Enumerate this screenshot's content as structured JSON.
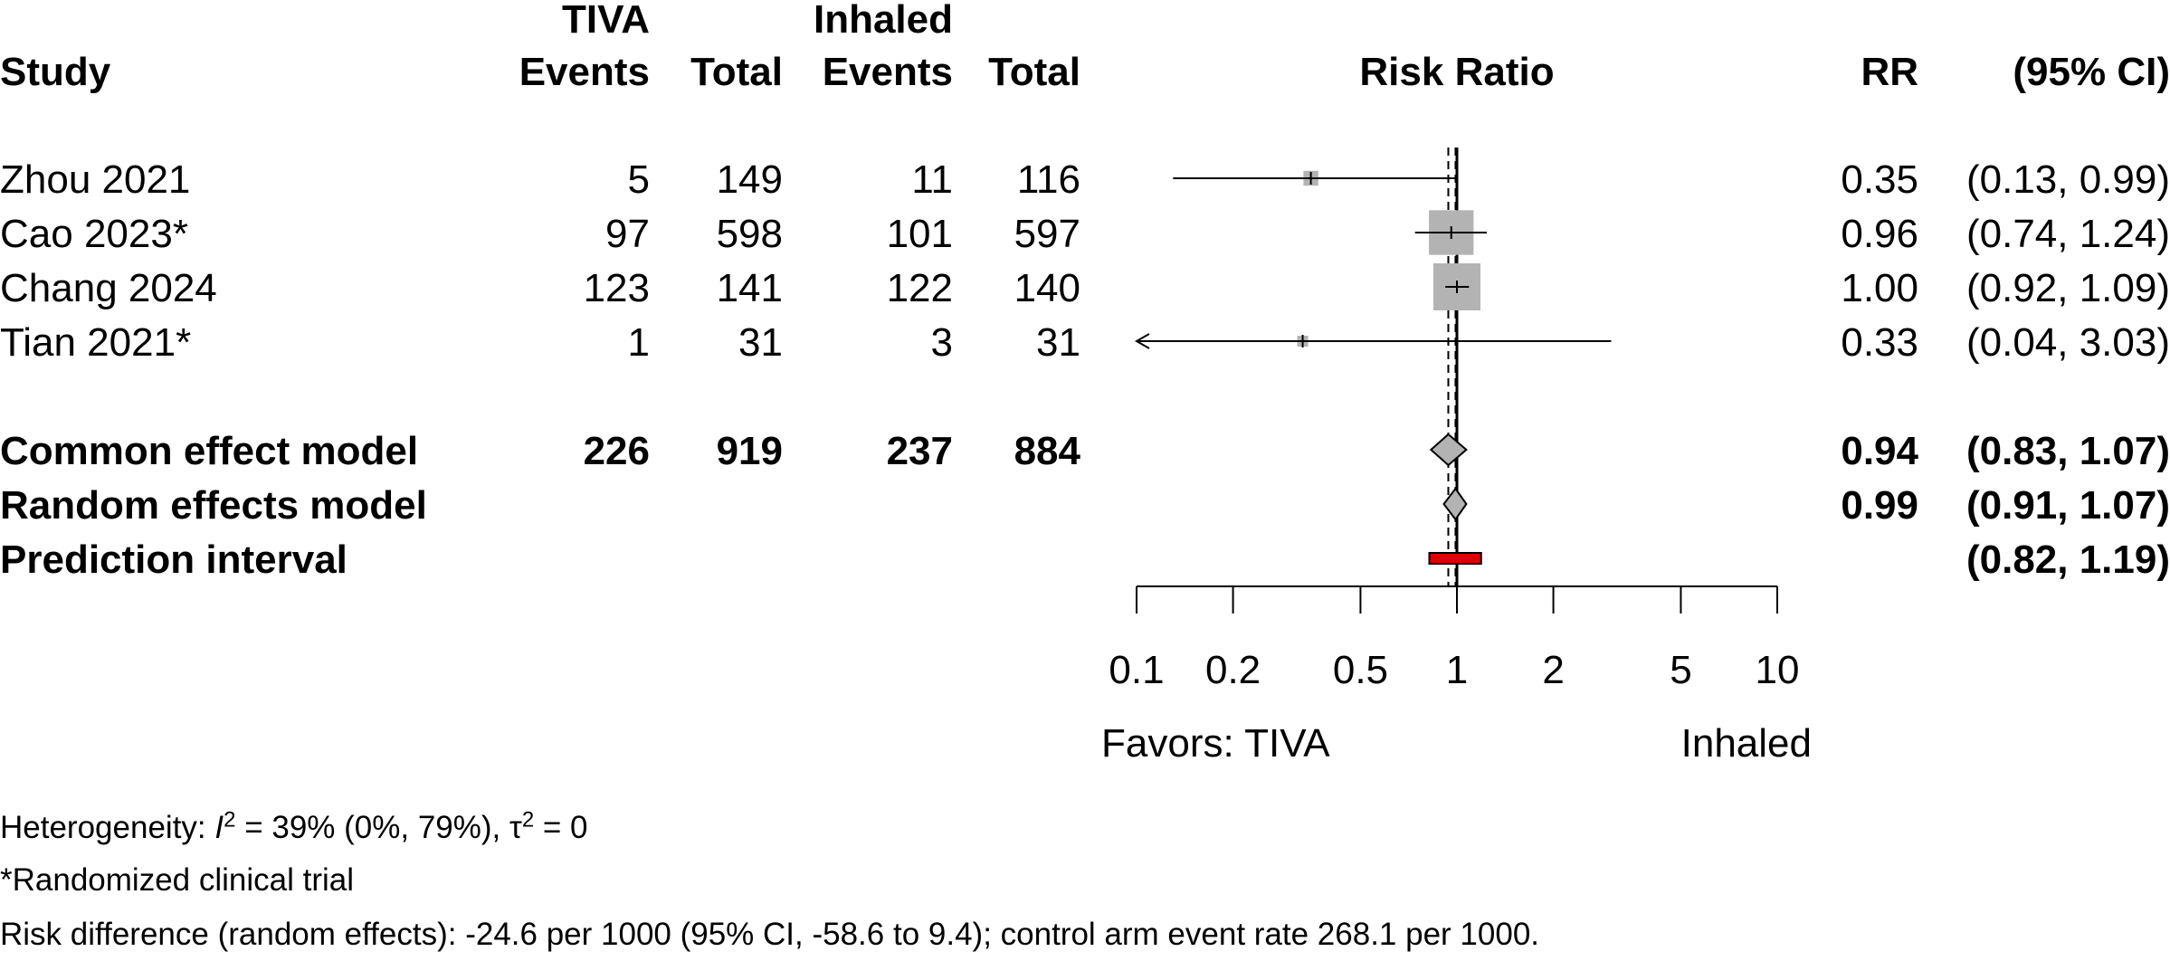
{
  "chart_data": {
    "type": "forest",
    "title": "",
    "measure": "Risk Ratio",
    "headers": {
      "study": "Study",
      "group1": "TIVA",
      "group2": "Inhaled",
      "events": "Events",
      "total": "Total",
      "effect_col": "RR",
      "ci_col": "(95% CI)"
    },
    "studies": [
      {
        "study": "Zhou 2021",
        "e1": "5",
        "n1": "149",
        "e2": "11",
        "n2": "116",
        "rr": 0.35,
        "lo": 0.13,
        "hi": 0.99,
        "rr_text": "0.35",
        "ci_text": "(0.13, 0.99)",
        "weight": 0.1
      },
      {
        "study": "Cao 2023*",
        "e1": "97",
        "n1": "598",
        "e2": "101",
        "n2": "597",
        "rr": 0.96,
        "lo": 0.74,
        "hi": 1.24,
        "rr_text": "0.96",
        "ci_text": "(0.74, 1.24)",
        "weight": 0.9
      },
      {
        "study": "Chang 2024",
        "e1": "123",
        "n1": "141",
        "e2": "122",
        "n2": "140",
        "rr": 1.0,
        "lo": 0.92,
        "hi": 1.09,
        "rr_text": "1.00",
        "ci_text": "(0.92, 1.09)",
        "weight": 1.0
      },
      {
        "study": "Tian 2021*",
        "e1": "1",
        "n1": "31",
        "e2": "3",
        "n2": "31",
        "rr": 0.33,
        "lo": 0.04,
        "hi": 3.03,
        "rr_text": "0.33",
        "ci_text": "(0.04, 3.03)",
        "weight": 0.02
      }
    ],
    "common": {
      "label": "Common effect model",
      "e1": "226",
      "n1": "919",
      "e2": "237",
      "n2": "884",
      "rr": 0.94,
      "lo": 0.83,
      "hi": 1.07,
      "rr_text": "0.94",
      "ci_text": "(0.83, 1.07)"
    },
    "random": {
      "label": "Random effects model",
      "rr": 0.99,
      "lo": 0.91,
      "hi": 1.07,
      "rr_text": "0.99",
      "ci_text": "(0.91, 1.07)"
    },
    "prediction": {
      "label": "Prediction interval",
      "lo": 0.82,
      "hi": 1.19,
      "ci_text": "(0.82, 1.19)"
    },
    "x_scale": "log",
    "xlim": [
      0.1,
      10
    ],
    "ticks": [
      0.1,
      0.2,
      0.5,
      1,
      2,
      5,
      10
    ],
    "tick_labels": [
      "0.1",
      "0.2",
      "0.5",
      "1",
      "2",
      "5",
      "10"
    ],
    "favors_left": "Favors: TIVA",
    "favors_right": "Inhaled",
    "colors": {
      "square": "#b3b3b3",
      "diamond": "#b3b3b3",
      "prediction": "#e00000",
      "line": "#000000"
    }
  },
  "footnotes": {
    "heterogeneity_prefix": "Heterogeneity: ",
    "i2_symbol": "I",
    "i2_exponent": "2",
    "i2_value": " = 39% (0%, 79%), ",
    "tau_symbol": "τ",
    "tau_exponent": "2",
    "tau_value": " = 0",
    "rct_note": "*Randomized clinical trial",
    "risk_difference": "Risk difference (random effects): -24.6 per 1000 (95% CI, -58.6 to 9.4); control arm event rate 268.1 per 1000."
  }
}
